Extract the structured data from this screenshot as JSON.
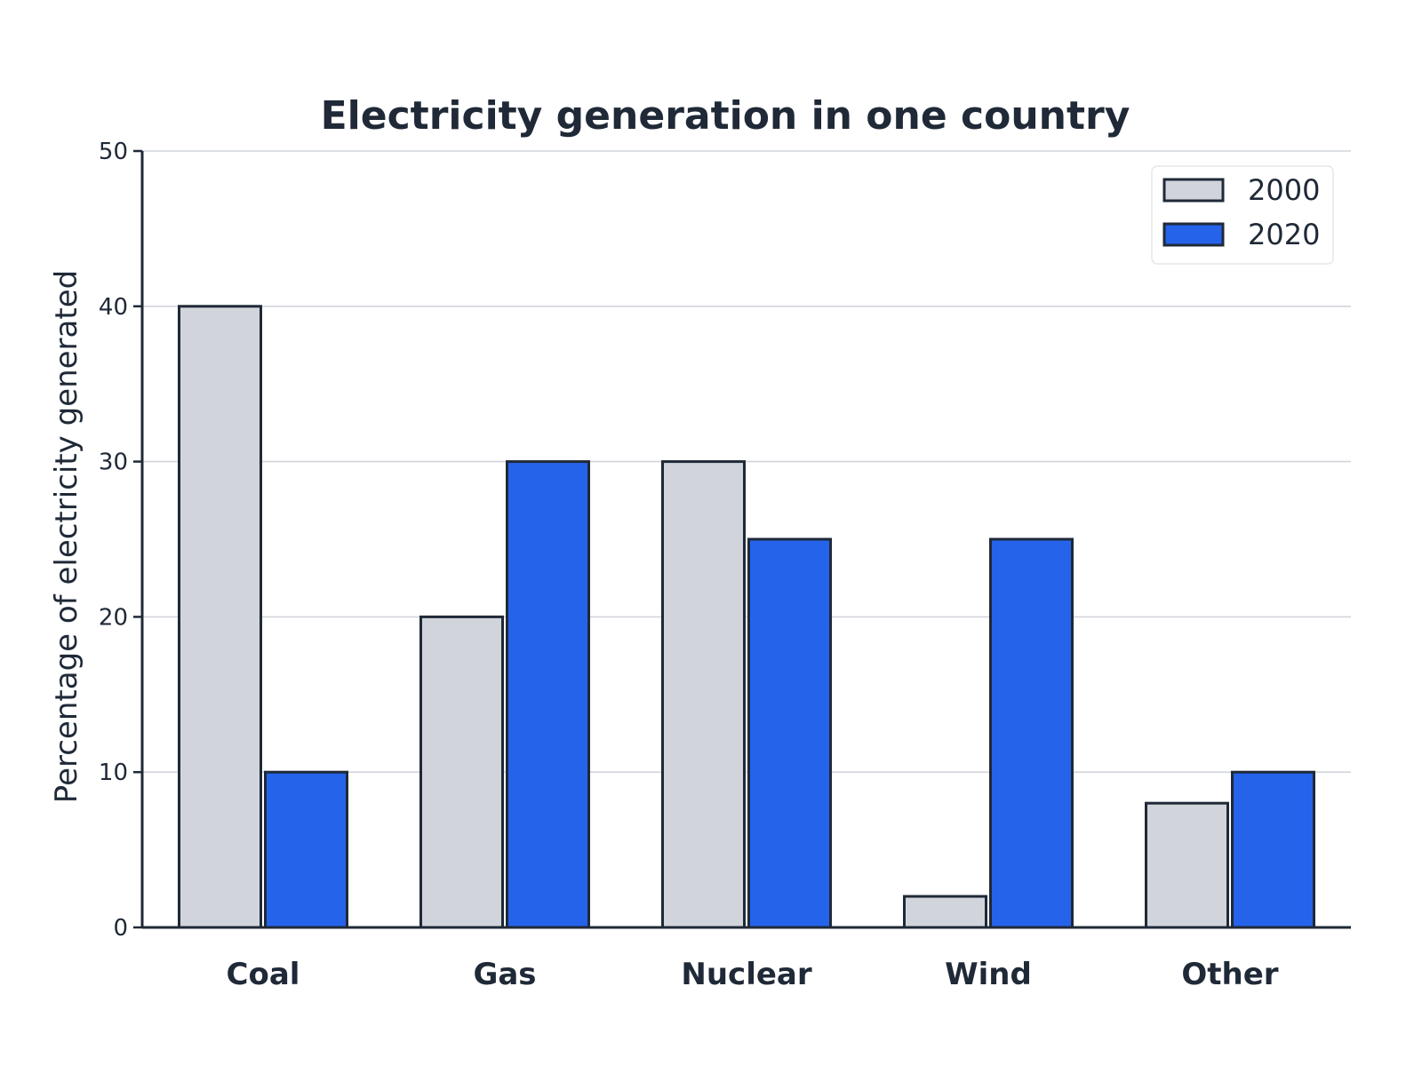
{
  "chart_data": {
    "type": "bar",
    "title": "Electricity generation in one country",
    "xlabel": "",
    "ylabel": "Percentage of electricity generated",
    "categories": [
      "Coal",
      "Gas",
      "Nuclear",
      "Wind",
      "Other"
    ],
    "series": [
      {
        "name": "2000",
        "values": [
          40,
          20,
          30,
          2,
          8
        ],
        "color": "#d1d5db"
      },
      {
        "name": "2020",
        "values": [
          10,
          30,
          25,
          25,
          10
        ],
        "color": "#2563eb"
      }
    ],
    "ylim": [
      0,
      50
    ],
    "yticks": [
      "0",
      "10",
      "20",
      "30",
      "40",
      "50"
    ],
    "grid": true,
    "legend_position": "top-right",
    "colors": {
      "text": "#1f2937",
      "axis": "#1f2937",
      "grid": "#d1d5db",
      "bar_outline": "#1f2937"
    }
  }
}
